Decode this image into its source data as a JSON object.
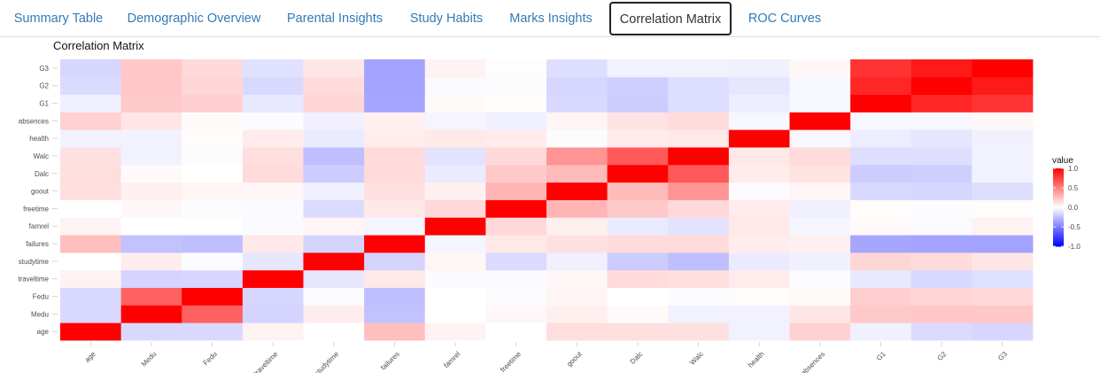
{
  "tabs": [
    {
      "label": "Summary Table",
      "active": false
    },
    {
      "label": "Demographic Overview",
      "active": false
    },
    {
      "label": "Parental Insights",
      "active": false
    },
    {
      "label": "Study Habits",
      "active": false
    },
    {
      "label": "Marks Insights",
      "active": false
    },
    {
      "label": "Correlation Matrix",
      "active": true
    },
    {
      "label": "ROC Curves",
      "active": false
    }
  ],
  "plot": {
    "title": "Correlation Matrix"
  },
  "colors": {
    "low": "#0000ff",
    "mid": "#ffffff",
    "high": "#ff0000",
    "tab_link": "#337ab7"
  },
  "chart_data": {
    "type": "heatmap",
    "title": "Correlation Matrix",
    "variables": [
      "age",
      "Medu",
      "Fedu",
      "traveltime",
      "studytime",
      "failures",
      "famrel",
      "freetime",
      "goout",
      "Dalc",
      "Walc",
      "health",
      "absences",
      "G1",
      "G2",
      "G3"
    ],
    "legend": {
      "title": "value",
      "ticks": [
        1.0,
        0.5,
        0.0,
        -0.5,
        -1.0
      ],
      "tick_labels": [
        "1.0",
        "0.5",
        "0.0",
        "-0.5",
        "-1.0"
      ],
      "range": [
        -1,
        1
      ],
      "placement": "right"
    },
    "matrix": [
      [
        1.0,
        -0.15,
        -0.15,
        0.05,
        0.0,
        0.25,
        0.05,
        0.0,
        0.13,
        0.13,
        0.12,
        -0.05,
        0.18,
        -0.06,
        -0.14,
        -0.16
      ],
      [
        -0.15,
        1.0,
        0.62,
        -0.17,
        0.07,
        -0.24,
        -0.0,
        0.03,
        0.06,
        0.02,
        -0.05,
        -0.05,
        0.1,
        0.21,
        0.22,
        0.22
      ],
      [
        -0.15,
        0.62,
        1.0,
        -0.16,
        -0.01,
        -0.25,
        -0.0,
        -0.01,
        0.04,
        0.0,
        -0.01,
        0.01,
        0.02,
        0.19,
        0.16,
        0.15
      ],
      [
        0.05,
        -0.17,
        -0.16,
        1.0,
        -0.1,
        0.09,
        -0.02,
        -0.02,
        0.03,
        0.14,
        0.13,
        0.08,
        -0.01,
        -0.09,
        -0.15,
        -0.12
      ],
      [
        0.0,
        0.07,
        -0.01,
        -0.1,
        1.0,
        -0.17,
        0.04,
        -0.14,
        -0.06,
        -0.2,
        -0.25,
        -0.08,
        -0.06,
        0.16,
        0.14,
        0.1
      ],
      [
        0.25,
        -0.24,
        -0.25,
        0.09,
        -0.17,
        1.0,
        -0.04,
        0.09,
        0.12,
        0.14,
        0.14,
        0.07,
        0.06,
        -0.35,
        -0.36,
        -0.36
      ],
      [
        0.05,
        -0.0,
        -0.0,
        -0.02,
        0.04,
        -0.04,
        1.0,
        0.15,
        0.06,
        -0.08,
        -0.11,
        0.09,
        -0.04,
        0.02,
        -0.02,
        0.05
      ],
      [
        0.0,
        0.03,
        -0.01,
        -0.02,
        -0.14,
        0.09,
        0.15,
        1.0,
        0.29,
        0.21,
        0.15,
        0.08,
        -0.06,
        0.01,
        -0.01,
        0.01
      ],
      [
        0.13,
        0.06,
        0.04,
        0.03,
        -0.06,
        0.12,
        0.06,
        0.29,
        1.0,
        0.27,
        0.42,
        -0.01,
        0.04,
        -0.15,
        -0.16,
        -0.13
      ],
      [
        0.13,
        0.02,
        0.0,
        0.14,
        -0.2,
        0.14,
        -0.08,
        0.21,
        0.27,
        1.0,
        0.65,
        0.08,
        0.11,
        -0.2,
        -0.19,
        -0.05
      ],
      [
        0.12,
        -0.05,
        -0.01,
        0.13,
        -0.25,
        0.14,
        -0.11,
        0.15,
        0.42,
        0.65,
        1.0,
        0.09,
        0.14,
        -0.13,
        -0.13,
        -0.05
      ],
      [
        -0.05,
        -0.05,
        0.01,
        0.08,
        -0.08,
        0.07,
        0.09,
        0.08,
        -0.01,
        0.08,
        0.09,
        1.0,
        -0.03,
        -0.07,
        -0.1,
        -0.06
      ],
      [
        0.18,
        0.1,
        0.02,
        -0.01,
        -0.06,
        0.06,
        -0.04,
        -0.06,
        0.04,
        0.11,
        0.14,
        -0.03,
        1.0,
        -0.03,
        -0.03,
        0.03
      ],
      [
        -0.06,
        0.21,
        0.19,
        -0.09,
        0.16,
        -0.35,
        0.02,
        0.01,
        -0.15,
        -0.2,
        -0.13,
        -0.07,
        -0.03,
        1.0,
        0.85,
        0.8
      ],
      [
        -0.14,
        0.22,
        0.16,
        -0.15,
        0.14,
        -0.36,
        -0.02,
        -0.01,
        -0.16,
        -0.19,
        -0.13,
        -0.1,
        -0.03,
        0.85,
        1.0,
        0.9
      ],
      [
        -0.16,
        0.22,
        0.15,
        -0.12,
        0.1,
        -0.36,
        0.05,
        0.01,
        -0.13,
        -0.05,
        -0.05,
        -0.06,
        0.03,
        0.8,
        0.9,
        1.0
      ]
    ]
  }
}
